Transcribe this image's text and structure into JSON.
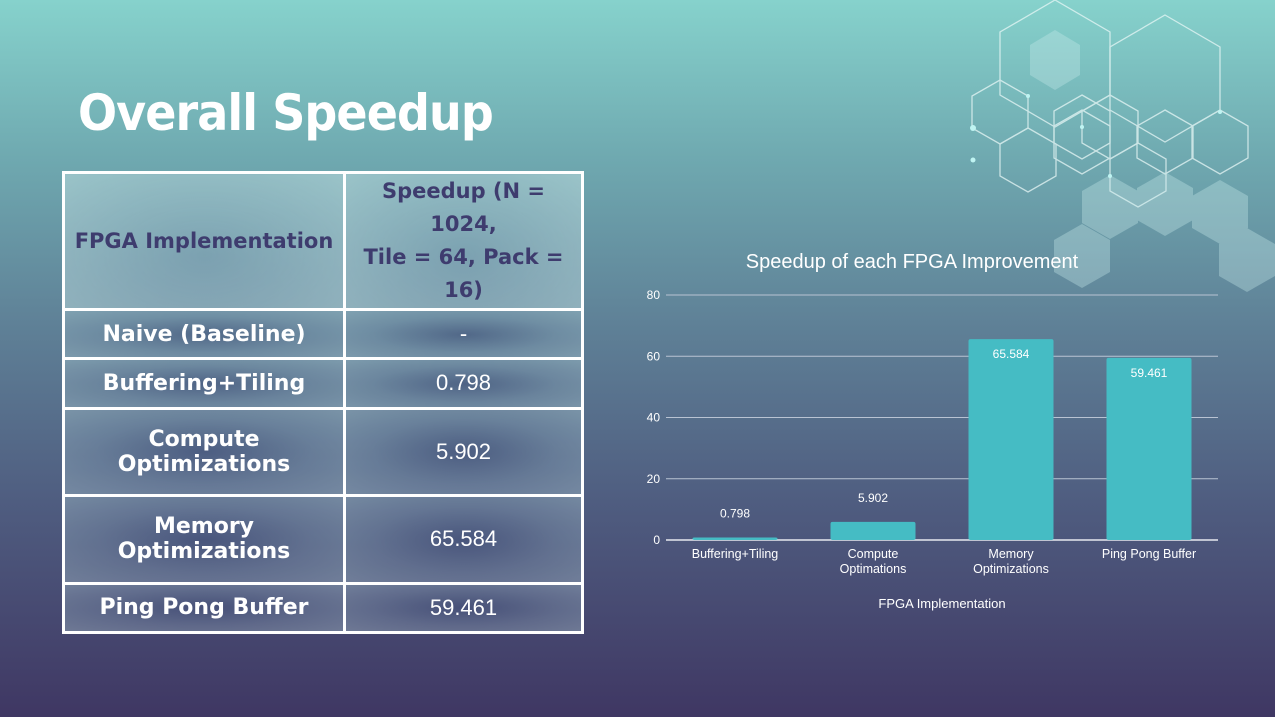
{
  "slide": {
    "title": "Overall Speedup"
  },
  "table": {
    "headers": [
      "FPGA Implementation",
      "Speedup (N = 1024, Tile = 64, Pack = 16)"
    ],
    "header_speedup_lines": [
      "Speedup (N = 1024,",
      "Tile = 64, Pack = 16)"
    ],
    "rows": [
      {
        "implementation": "Naive (Baseline)",
        "speedup": "-"
      },
      {
        "implementation": "Buffering+Tiling",
        "speedup": "0.798"
      },
      {
        "implementation": "Compute Optimizations",
        "speedup": "5.902"
      },
      {
        "implementation": "Memory Optimizations",
        "speedup": "65.584"
      },
      {
        "implementation": "Ping Pong Buffer",
        "speedup": "59.461"
      }
    ]
  },
  "chart_data": {
    "type": "bar",
    "title": "Speedup of each FPGA Improvement",
    "xlabel": "FPGA Implementation",
    "ylabel": "",
    "categories": [
      [
        "Buffering+Tiling"
      ],
      [
        "Compute",
        "Optimations"
      ],
      [
        "Memory",
        "Optimizations"
      ],
      [
        "Ping Pong Buffer"
      ]
    ],
    "values": [
      0.798,
      5.902,
      65.584,
      59.461
    ],
    "data_labels": [
      "0.798",
      "5.902",
      "65.584",
      "59.461"
    ],
    "yticks": [
      0,
      20,
      40,
      60,
      80
    ],
    "ylim": [
      0,
      80
    ],
    "grid": true,
    "bar_color": "#45bcc4",
    "gridline_color": "#b9c3d3"
  }
}
